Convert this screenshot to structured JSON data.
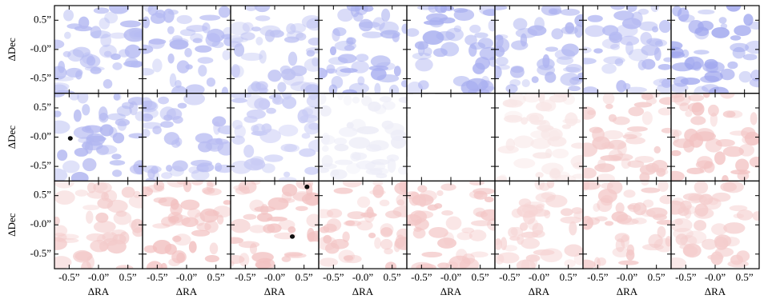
{
  "chart_data": {
    "type": "image-grid",
    "rows": 3,
    "cols": 8,
    "xlabel": "ΔRA",
    "ylabel": "ΔDec",
    "xlim": [
      -0.75,
      0.75
    ],
    "ylim": [
      -0.75,
      0.75
    ],
    "xticks": [
      {
        "value": -0.5,
        "label": "-0.5”"
      },
      {
        "value": 0,
        "label": "-0.0”"
      },
      {
        "value": 0.5,
        "label": "0.5”"
      }
    ],
    "yticks": [
      {
        "value": 0.5,
        "label": "0.5”"
      },
      {
        "value": 0,
        "label": "-0.0”"
      },
      {
        "value": -0.5,
        "label": "-0.5”"
      }
    ],
    "panel_colors": [
      "#b4b9f2",
      "#b4b9f2",
      "#bcc0f2",
      "#a9aff0",
      "#a9aff0",
      "#b0b5f0",
      "#b4b9f2",
      "#9fa6ee",
      "#b0b5f0",
      "#b8bcf2",
      "#c8cbf5",
      "#ececf7",
      "#ffffff",
      "#f8e6e6",
      "#f3caca",
      "#f2c2c2",
      "#f3caca",
      "#f2c0c0",
      "#f2c2c2",
      "#f3c6c6",
      "#f3c6c6",
      "#f6d4d4",
      "#f3c8c8",
      "#f4cccc"
    ],
    "contours": [
      {
        "panel": 8,
        "x": -0.48,
        "y": -0.02
      },
      {
        "panel": 18,
        "x": 0.55,
        "y": 0.65
      },
      {
        "panel": 18,
        "x": 0.3,
        "y": -0.2
      }
    ]
  }
}
